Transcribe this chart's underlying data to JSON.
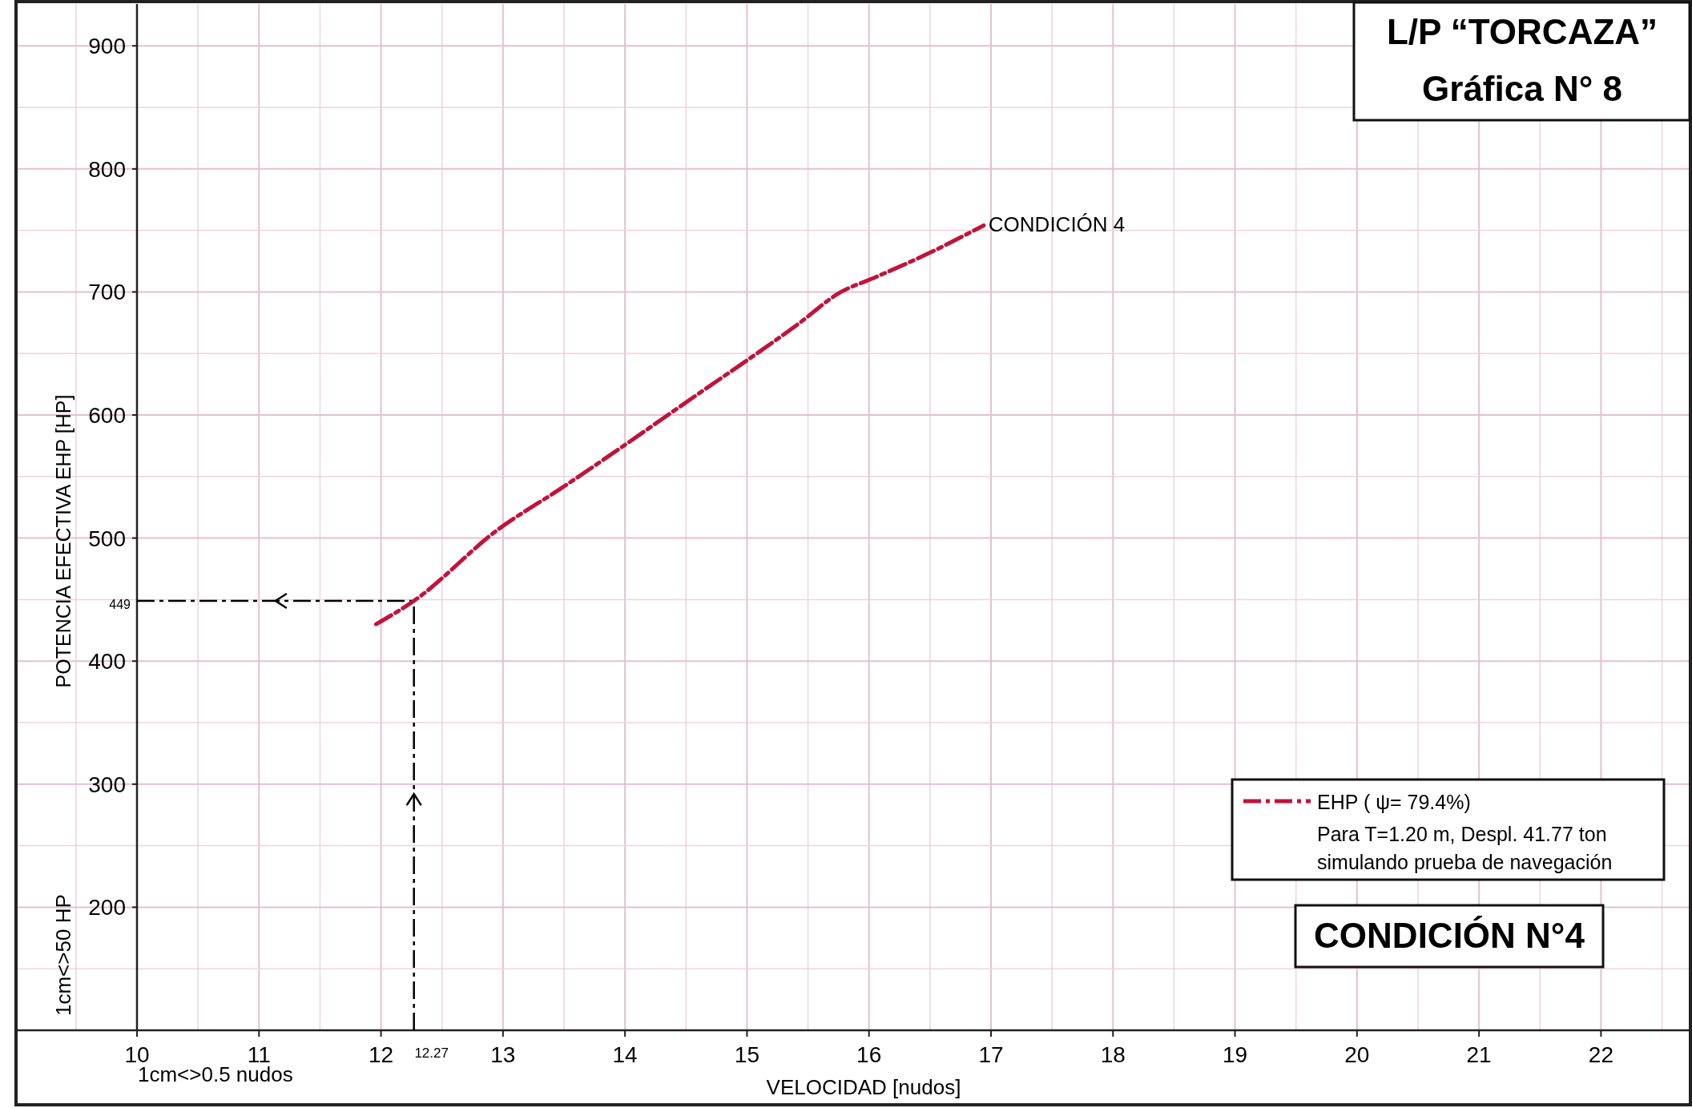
{
  "chart_data": {
    "type": "line",
    "title": "L/P “TORCAZA”",
    "subtitle": "Gráfica N° 8",
    "xlabel": "VELOCIDAD [nudos]",
    "ylabel": "POTENCIA EFECTIVA EHP [HP]",
    "xlim": [
      10,
      22.7
    ],
    "ylim": [
      100,
      934
    ],
    "xticks": [
      10,
      11,
      12,
      13,
      14,
      15,
      16,
      17,
      18,
      19,
      20,
      21,
      22
    ],
    "yticks": [
      200,
      300,
      400,
      500,
      600,
      700,
      800,
      900
    ],
    "grid": true,
    "legend": "bottom right",
    "line_style": "dashed",
    "series": [
      {
        "name": "EHP ( ψ= 79.4%)",
        "color": "#c0143c",
        "x": [
          11.96,
          12.27,
          12.96,
          13.47,
          14.54,
          15.42,
          15.77,
          16.03,
          16.48,
          16.94
        ],
        "values": [
          430,
          449,
          507,
          540,
          613,
          674,
          700,
          711,
          731,
          754
        ]
      }
    ],
    "ref_lines": [
      {
        "axis": "y",
        "value": 449,
        "label": "449",
        "color": "#000000",
        "line_style": "dashed"
      },
      {
        "axis": "x",
        "value": 12.27,
        "label": "12.27",
        "color": "#000000",
        "line_style": "dashed"
      }
    ],
    "annotations": [
      {
        "text": "CONDICIÓN 4",
        "x": 16.94,
        "y": 754
      },
      "Para T=1.20 m, Despl. 41.77 ton",
      "simulando prueba de navegación",
      "CONDICIÓN N°4",
      "1cm<>50 HP",
      "1cm<>0.5 nudos"
    ]
  }
}
